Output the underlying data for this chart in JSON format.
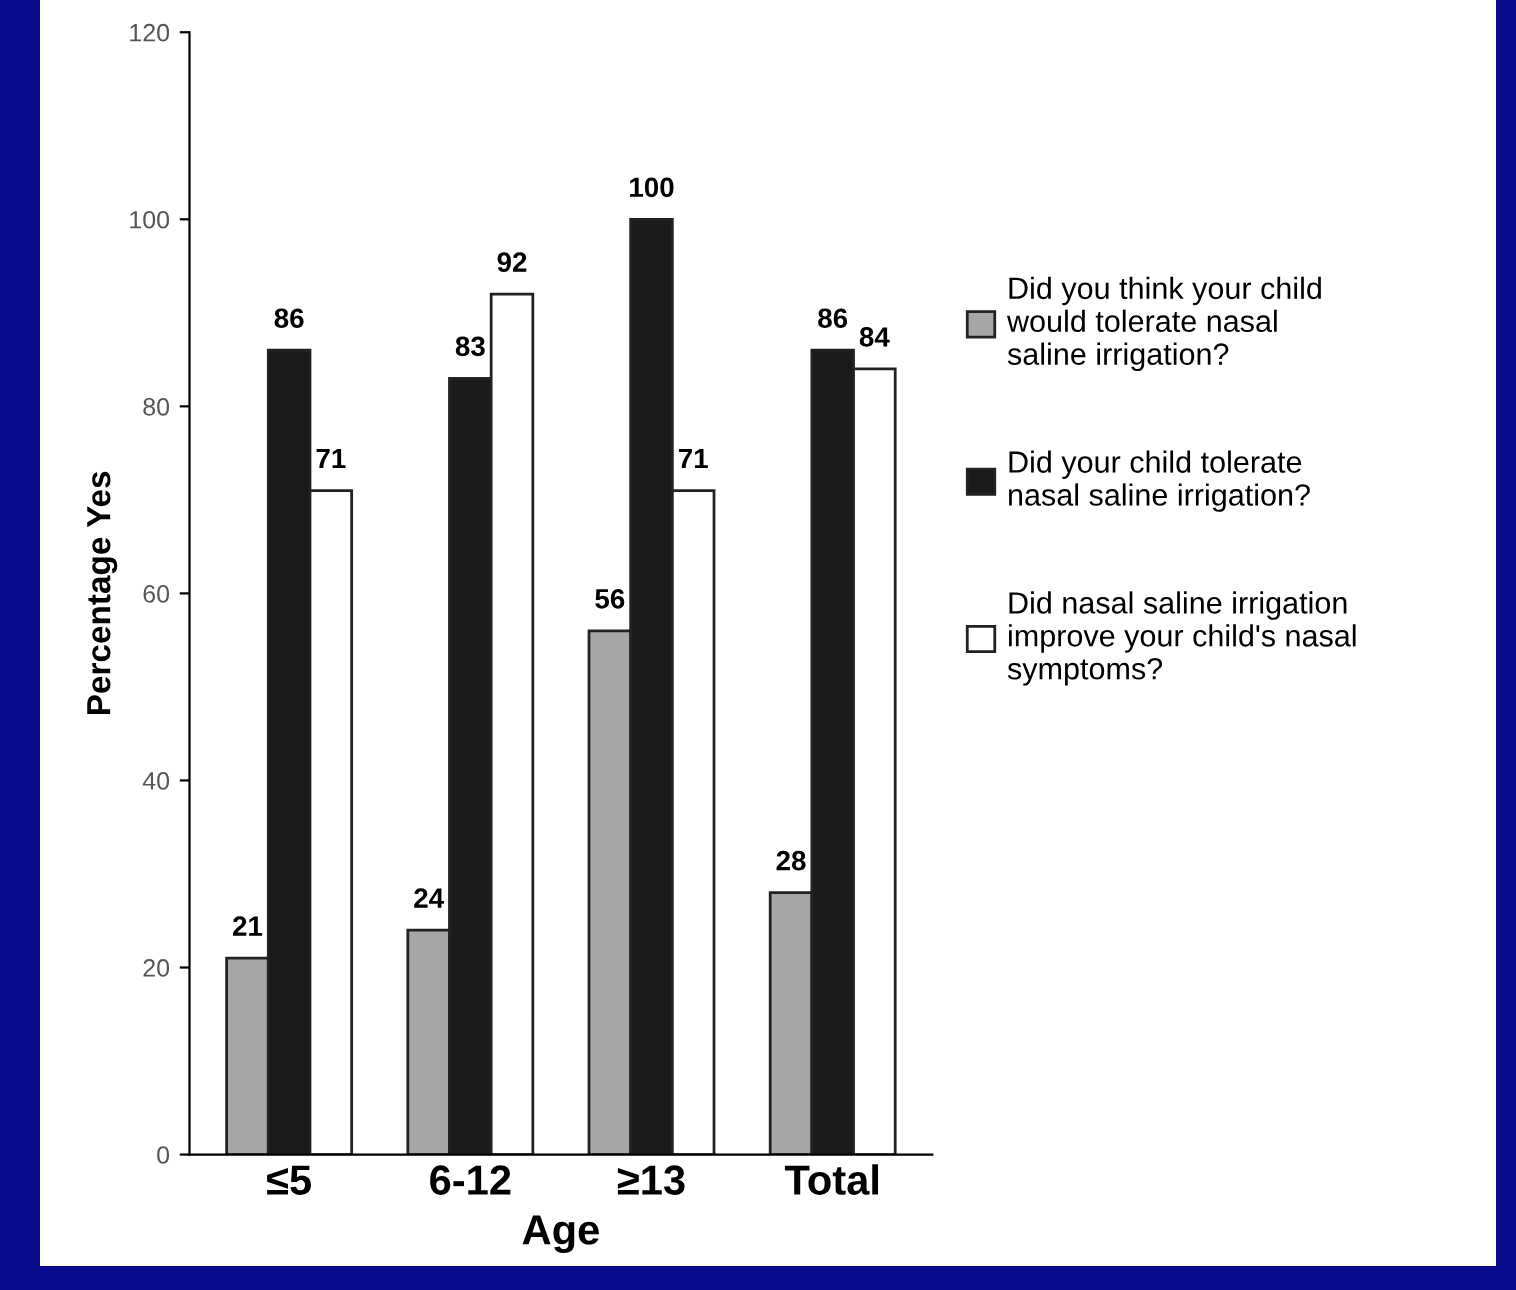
{
  "chart_data": {
    "type": "bar",
    "xlabel": "Age",
    "ylabel": "Percentage Yes",
    "categories": [
      "≤5",
      "6-12",
      "≥13",
      "Total"
    ],
    "series": [
      {
        "name": "Did you think your child\nwould tolerate nasal\nsaline irrigation?",
        "color": "#a6a6a6",
        "values": [
          21,
          24,
          56,
          28
        ]
      },
      {
        "name": "Did your child tolerate\nnasal saline irrigation?",
        "color": "#1a1a1a",
        "values": [
          86,
          83,
          100,
          86
        ]
      },
      {
        "name": "Did nasal saline irrigation\nimprove your child's nasal\nsymptoms?",
        "color": "#ffffff",
        "values": [
          71,
          92,
          71,
          84
        ]
      }
    ],
    "ylim": [
      0,
      120
    ],
    "yticks": [
      0,
      20,
      40,
      60,
      80,
      100,
      120
    ],
    "data_labels": true,
    "grid": false,
    "legend": "right"
  }
}
